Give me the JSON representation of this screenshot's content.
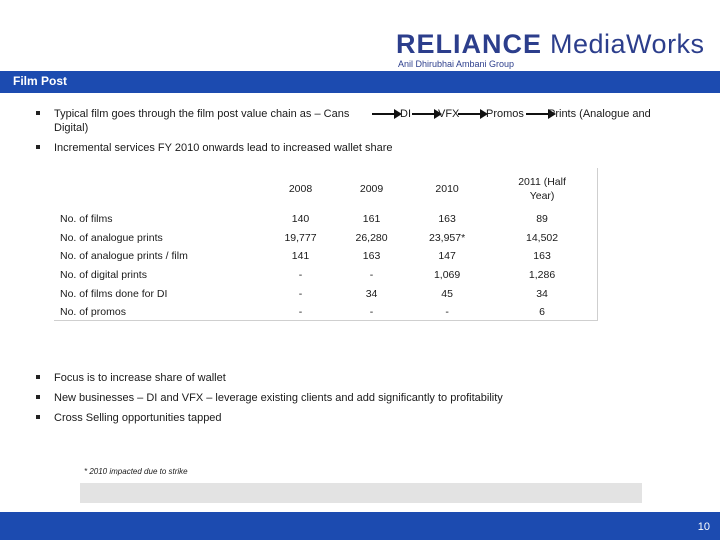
{
  "brand": {
    "reliance": "RELIANCE",
    "mediaworks": "MediaWorks",
    "group": "Anil Dhirubhai Ambani Group",
    "color": "#2c3e8c"
  },
  "title": "Film Post",
  "top_bullets": {
    "chain_intro": "Typical film goes through the film post value chain as – Cans",
    "chain_steps": [
      "DI",
      "VFX",
      "Promos",
      "Prints (Analogue and"
    ],
    "chain_wrap": "Digital)",
    "incremental": "Incremental services FY 2010 onwards lead to increased wallet share"
  },
  "table": {
    "headers": [
      "2008",
      "2009",
      "2010",
      "2011 (Half Year)"
    ],
    "header_2011_line1": "2011 (Half",
    "header_2011_line2": "Year)",
    "rows": [
      {
        "label": "No. of films",
        "values": [
          "140",
          "161",
          "163",
          "89"
        ]
      },
      {
        "label": "No. of analogue prints",
        "values": [
          "19,777",
          "26,280",
          "23,957*",
          "14,502"
        ]
      },
      {
        "label": "No. of analogue prints / film",
        "values": [
          "141",
          "163",
          "147",
          "163"
        ]
      },
      {
        "label": "No. of digital prints",
        "values": [
          "-",
          "-",
          "1,069",
          "1,286"
        ]
      },
      {
        "label": "No. of films done for DI",
        "values": [
          "-",
          "34",
          "45",
          "34"
        ]
      },
      {
        "label": "No. of promos",
        "values": [
          "-",
          "-",
          "-",
          "6"
        ]
      }
    ]
  },
  "bottom_bullets": [
    "Focus is to increase share of wallet",
    "New businesses – DI and VFX – leverage existing clients and add significantly to profitability",
    "Cross Selling opportunities tapped"
  ],
  "footnote": "* 2010 impacted due to strike",
  "page_number": "10",
  "colors": {
    "bar": "#1c4bb0",
    "grey_bar": "#e3e3e3"
  }
}
